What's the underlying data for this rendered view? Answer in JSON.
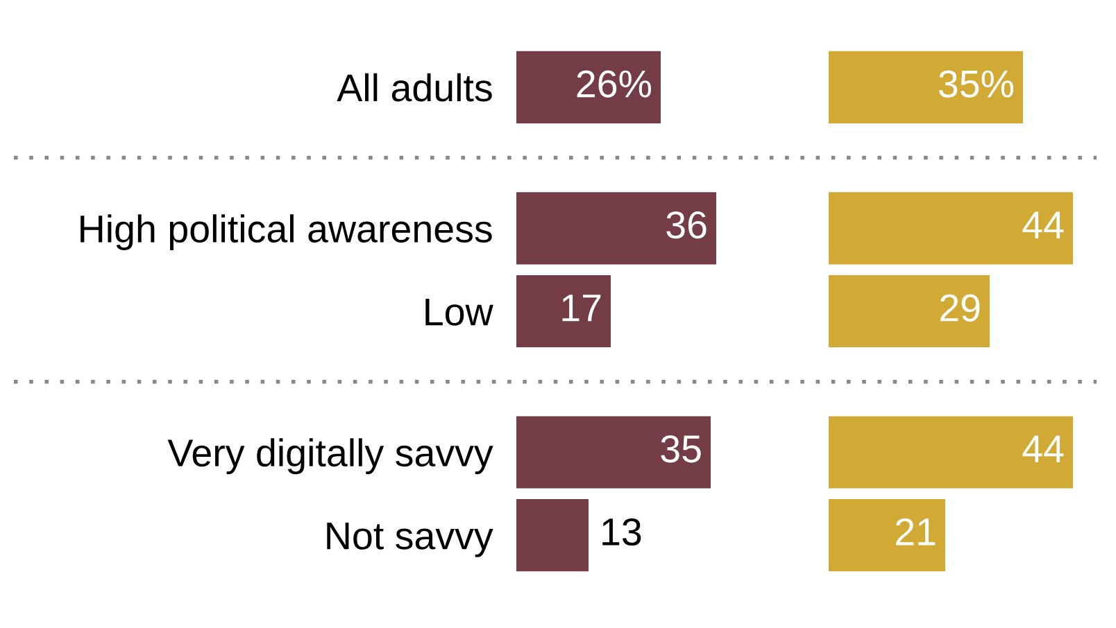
{
  "chart_data": [
    {
      "type": "bar",
      "orientation": "horizontal",
      "categories": [
        "All adults",
        null,
        "High political awareness",
        "Low",
        null,
        "Very digitally savvy",
        "Not savvy"
      ],
      "values": [
        26,
        null,
        36,
        17,
        null,
        35,
        13
      ],
      "value_labels": [
        "26%",
        null,
        "36",
        "17",
        null,
        "35",
        "13"
      ],
      "color": "#733c47",
      "tick_labels": "y"
    },
    {
      "type": "bar",
      "orientation": "horizontal",
      "categories": [
        null,
        null,
        null,
        null,
        null,
        null,
        null
      ],
      "values": [
        35,
        null,
        44,
        29,
        null,
        44,
        21
      ],
      "value_labels": [
        "35%",
        null,
        "44",
        "29",
        null,
        "44",
        "21"
      ],
      "color": "#d1a935",
      "tick_labels": false
    }
  ]
}
